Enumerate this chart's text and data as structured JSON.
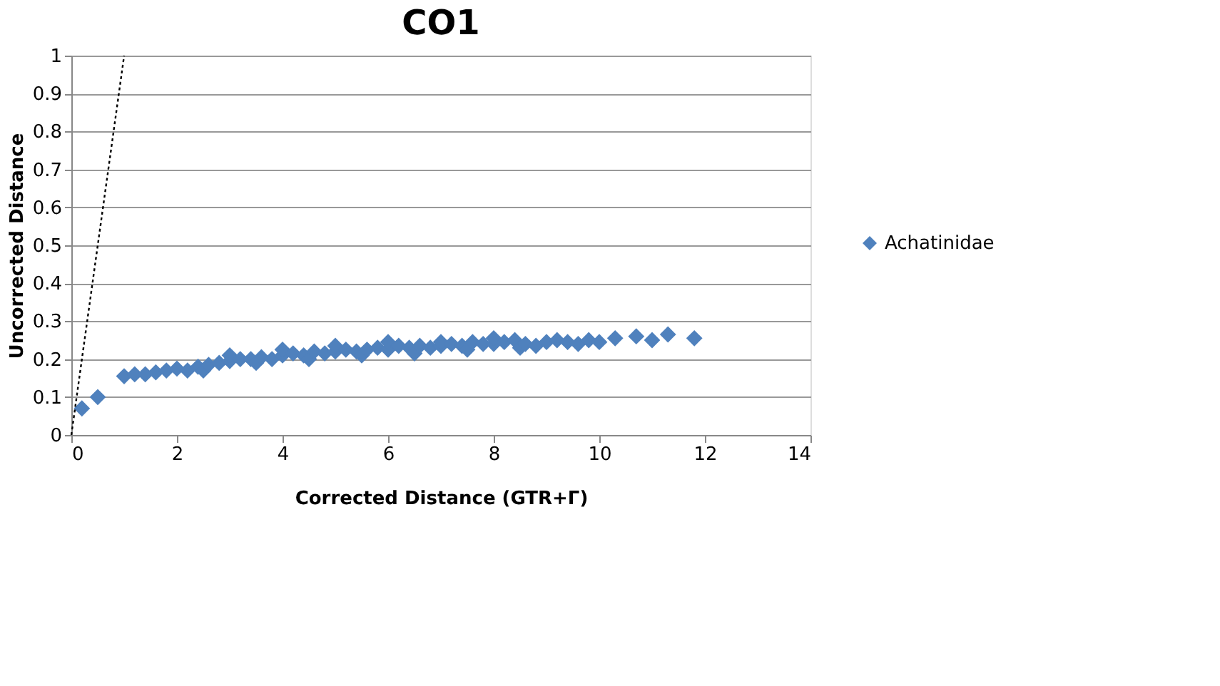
{
  "chart_data": {
    "type": "scatter",
    "title": "CO1",
    "xlabel": "Corrected Distance (GTR+Γ)",
    "ylabel": "Uncorrected Distance",
    "xlim": [
      0,
      14
    ],
    "xticks": [
      0,
      2,
      4,
      6,
      8,
      10,
      12,
      14
    ],
    "ylim": [
      0,
      1
    ],
    "yticks": [
      0,
      0.1,
      0.2,
      0.3,
      0.4,
      0.5,
      0.6,
      0.7,
      0.8,
      0.9,
      1
    ],
    "grid": "y",
    "legend": "right",
    "marker": "diamond",
    "series": [
      {
        "name": "Achatinidae",
        "color": "#4f81bd",
        "x": [
          0.2,
          0.5,
          1.0,
          1.2,
          1.4,
          1.6,
          1.8,
          2.0,
          2.2,
          2.4,
          2.5,
          2.6,
          2.8,
          3.0,
          3.0,
          3.2,
          3.4,
          3.5,
          3.6,
          3.8,
          4.0,
          4.0,
          4.2,
          4.4,
          4.5,
          4.6,
          4.8,
          5.0,
          5.0,
          5.2,
          5.4,
          5.5,
          5.6,
          5.8,
          6.0,
          6.0,
          6.2,
          6.4,
          6.5,
          6.6,
          6.8,
          7.0,
          7.0,
          7.2,
          7.4,
          7.5,
          7.6,
          7.8,
          8.0,
          8.0,
          8.2,
          8.4,
          8.5,
          8.6,
          8.8,
          9.0,
          9.2,
          9.4,
          9.6,
          9.8,
          10.0,
          10.3,
          10.7,
          11.0,
          11.3,
          11.8
        ],
        "values": [
          0.07,
          0.1,
          0.155,
          0.16,
          0.16,
          0.165,
          0.17,
          0.175,
          0.17,
          0.18,
          0.17,
          0.185,
          0.19,
          0.195,
          0.21,
          0.2,
          0.2,
          0.19,
          0.205,
          0.2,
          0.21,
          0.225,
          0.215,
          0.21,
          0.2,
          0.22,
          0.215,
          0.22,
          0.235,
          0.225,
          0.22,
          0.21,
          0.225,
          0.23,
          0.225,
          0.245,
          0.235,
          0.23,
          0.215,
          0.235,
          0.23,
          0.235,
          0.245,
          0.24,
          0.235,
          0.225,
          0.245,
          0.24,
          0.24,
          0.255,
          0.245,
          0.25,
          0.23,
          0.24,
          0.235,
          0.245,
          0.25,
          0.245,
          0.24,
          0.25,
          0.245,
          0.255,
          0.26,
          0.25,
          0.265,
          0.255
        ]
      },
      {
        "color": "#000000",
        "type": "line",
        "line_style": "dotted",
        "marker": "none",
        "x": [
          0,
          1
        ],
        "values": [
          0,
          1
        ]
      }
    ]
  }
}
